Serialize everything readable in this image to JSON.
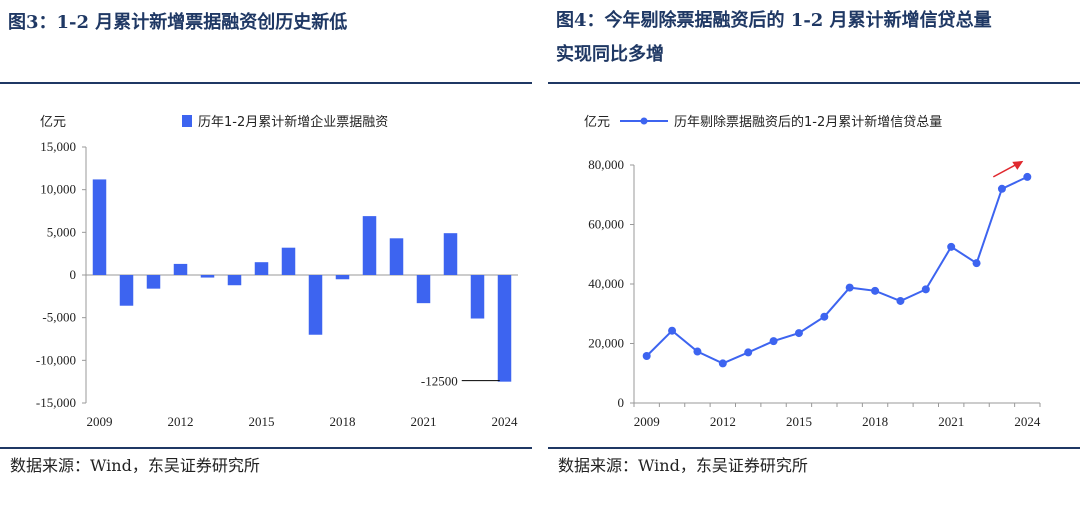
{
  "left": {
    "title": "图3：1-2 月累计新增票据融资创历史新低",
    "source": "数据来源：Wind，东吴证券研究所",
    "unit": "亿元",
    "legend": "历年1-2月累计新增企业票据融资",
    "annotation": "-12500",
    "color": "#3d64f0"
  },
  "right": {
    "title_line1": "图4：今年剔除票据融资后的 1-2 月累计新增信贷总量",
    "title_line2": "实现同比多增",
    "source": "数据来源：Wind，东吴证券研究所",
    "unit": "亿元",
    "legend": "历年剔除票据融资后的1-2月累计新增信贷总量",
    "color": "#3d64f0",
    "arrow_color": "#e0282e"
  },
  "chart_data": [
    {
      "type": "bar",
      "x": [
        2009,
        2010,
        2011,
        2012,
        2013,
        2014,
        2015,
        2016,
        2017,
        2018,
        2019,
        2020,
        2021,
        2022,
        2023,
        2024
      ],
      "series": [
        {
          "name": "历年1-2月累计新增企业票据融资",
          "values": [
            11200,
            -3600,
            -1600,
            1300,
            -300,
            -1200,
            1500,
            3200,
            -7000,
            -500,
            6900,
            4300,
            -3300,
            4900,
            -5100,
            -12500
          ]
        }
      ],
      "ylim": [
        -15000,
        15000
      ],
      "yticks": [
        -15000,
        -10000,
        -5000,
        0,
        5000,
        10000,
        15000
      ],
      "ytick_labels": [
        "-15,000",
        "-10,000",
        "-5,000",
        "0",
        "5,000",
        "10,000",
        "15,000"
      ],
      "xtick_labels": [
        "2009",
        "2012",
        "2015",
        "2018",
        "2021",
        "2024"
      ],
      "ylabel": "亿元"
    },
    {
      "type": "line",
      "x": [
        2009,
        2010,
        2011,
        2012,
        2013,
        2014,
        2015,
        2016,
        2017,
        2018,
        2019,
        2020,
        2021,
        2022,
        2023,
        2024
      ],
      "series": [
        {
          "name": "历年剔除票据融资后的1-2月累计新增信贷总量",
          "values": [
            15800,
            24300,
            17300,
            13300,
            17000,
            20800,
            23500,
            29000,
            38800,
            37700,
            34300,
            38200,
            52500,
            47000,
            72000,
            76000
          ]
        }
      ],
      "ylim": [
        0,
        80000
      ],
      "yticks": [
        0,
        20000,
        40000,
        60000,
        80000
      ],
      "ytick_labels": [
        "0",
        "20,000",
        "40,000",
        "60,000",
        "80,000"
      ],
      "xtick_labels": [
        "2009",
        "2012",
        "2015",
        "2018",
        "2021",
        "2024"
      ],
      "ylabel": "亿元"
    }
  ]
}
